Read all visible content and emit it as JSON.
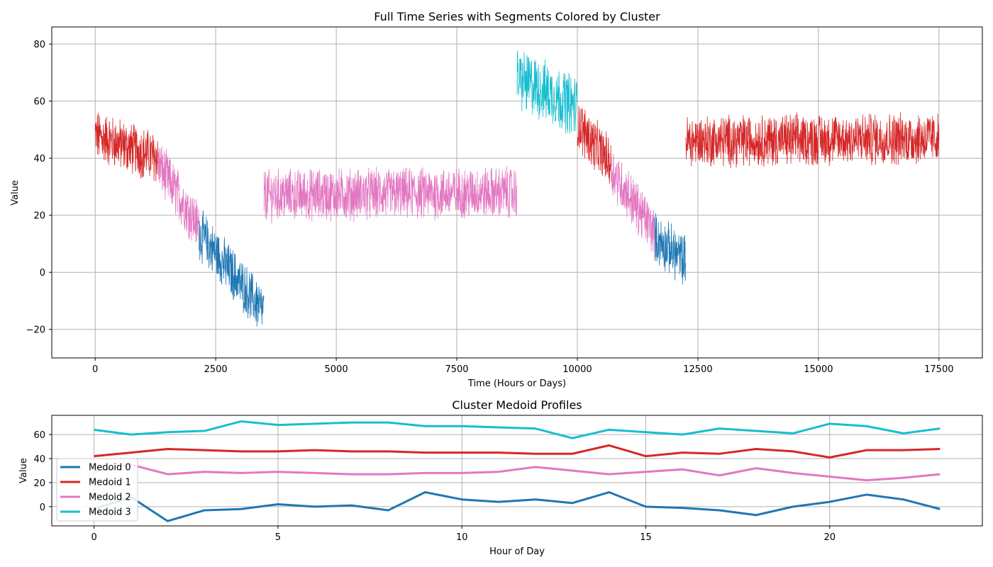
{
  "chart_data": [
    {
      "type": "line",
      "title": "Full Time Series with Segments Colored by Cluster",
      "xlabel": "Time (Hours or Days)",
      "ylabel": "Value",
      "xlim": [
        -900,
        18400
      ],
      "ylim": [
        -30,
        86
      ],
      "xticks": [
        0,
        2500,
        5000,
        7500,
        10000,
        12500,
        15000,
        17500
      ],
      "xtick_labels": [
        "0",
        "2500",
        "5000",
        "7500",
        "10000",
        "12500",
        "15000",
        "17500"
      ],
      "yticks": [
        -20,
        0,
        20,
        40,
        60,
        80
      ],
      "ytick_labels": [
        "−20",
        "0",
        "20",
        "40",
        "60",
        "80"
      ],
      "grid": true,
      "cluster_colors": [
        "#1f77b4",
        "#d62728",
        "#e377c2",
        "#17becf"
      ],
      "segments": [
        {
          "cluster": 1,
          "x": [
            0,
            1300
          ],
          "level": [
            48,
            40
          ],
          "amp": 5
        },
        {
          "cluster": 2,
          "x": [
            1300,
            2150
          ],
          "level": [
            38,
            16
          ],
          "amp": 5
        },
        {
          "cluster": 0,
          "x": [
            2150,
            3500
          ],
          "level": [
            14,
            -14
          ],
          "amp": 5
        },
        {
          "cluster": 2,
          "x": [
            3500,
            8750
          ],
          "level": [
            27,
            28
          ],
          "amp": 5
        },
        {
          "cluster": 3,
          "x": [
            8750,
            10000
          ],
          "level": [
            68,
            58
          ],
          "amp": 6
        },
        {
          "cluster": 1,
          "x": [
            10000,
            10700
          ],
          "level": [
            52,
            38
          ],
          "amp": 5
        },
        {
          "cluster": 2,
          "x": [
            10700,
            11600
          ],
          "level": [
            36,
            14
          ],
          "amp": 5
        },
        {
          "cluster": 0,
          "x": [
            11600,
            12250
          ],
          "level": [
            12,
            4
          ],
          "amp": 5
        },
        {
          "cluster": 1,
          "x": [
            12250,
            17500
          ],
          "level": [
            46,
            47
          ],
          "amp": 5
        }
      ]
    },
    {
      "type": "line",
      "title": "Cluster Medoid Profiles",
      "xlabel": "Hour of Day",
      "ylabel": "Value",
      "xlim": [
        -1.15,
        24.15
      ],
      "ylim": [
        -16,
        76
      ],
      "xticks": [
        0,
        5,
        10,
        15,
        20
      ],
      "xtick_labels": [
        "0",
        "5",
        "10",
        "15",
        "20"
      ],
      "yticks": [
        0,
        20,
        40,
        60
      ],
      "ytick_labels": [
        "0",
        "20",
        "40",
        "60"
      ],
      "grid": true,
      "legend": "lower-left",
      "x": [
        0,
        1,
        2,
        3,
        4,
        5,
        6,
        7,
        8,
        9,
        10,
        11,
        12,
        13,
        14,
        15,
        16,
        17,
        18,
        19,
        20,
        21,
        22,
        23
      ],
      "series": [
        {
          "name": "Medoid 0",
          "color": "#1f77b4",
          "values": [
            -2,
            8,
            -12,
            -3,
            -2,
            2,
            0,
            1,
            -3,
            12,
            6,
            4,
            6,
            3,
            12,
            0,
            -1,
            -3,
            -7,
            0,
            4,
            10,
            6,
            -2
          ]
        },
        {
          "name": "Medoid 1",
          "color": "#d62728",
          "values": [
            42,
            45,
            48,
            47,
            46,
            46,
            47,
            46,
            46,
            45,
            45,
            45,
            44,
            44,
            51,
            42,
            45,
            44,
            48,
            46,
            41,
            47,
            47,
            48
          ]
        },
        {
          "name": "Medoid 2",
          "color": "#e377c2",
          "values": [
            29,
            35,
            27,
            29,
            28,
            29,
            28,
            27,
            27,
            28,
            28,
            29,
            33,
            30,
            27,
            29,
            31,
            26,
            32,
            28,
            25,
            22,
            24,
            27
          ]
        },
        {
          "name": "Medoid 3",
          "color": "#17becf",
          "values": [
            64,
            60,
            62,
            63,
            71,
            68,
            69,
            70,
            70,
            67,
            67,
            66,
            65,
            57,
            64,
            62,
            60,
            65,
            63,
            61,
            69,
            67,
            61,
            65
          ]
        }
      ]
    }
  ]
}
